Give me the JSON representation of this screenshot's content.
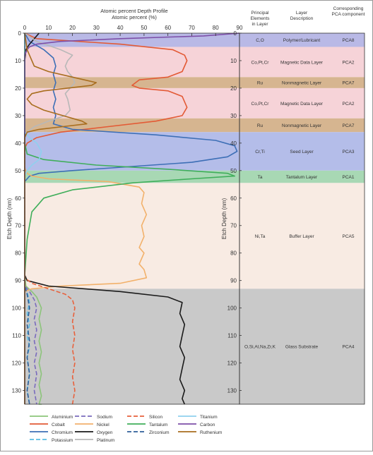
{
  "chart_data": {
    "type": "line",
    "title": "Atomic percent Depth Profile",
    "xlabel": "Atomic percent (%)",
    "ylabel": "Etch Depth (nm)",
    "xlim": [
      0,
      90
    ],
    "ylim": [
      135,
      0
    ],
    "x_ticks": [
      0,
      10,
      20,
      30,
      40,
      50,
      60,
      70,
      80,
      90
    ],
    "y_ticks": [
      0,
      10,
      20,
      30,
      40,
      50,
      60,
      70,
      80,
      90,
      100,
      110,
      120,
      130
    ],
    "grid": false,
    "legend_position": "bottom",
    "table_headers": {
      "elements": "Principal Elements in Layer",
      "description": "Layer Description",
      "component": "Corresponding PCA component"
    },
    "layers": [
      {
        "from": 0,
        "to": 5,
        "color": "#b9b9e6",
        "elements": "C,O",
        "description": "Polymer/Lubricant",
        "component": "PCA8"
      },
      {
        "from": 5,
        "to": 16,
        "color": "#f6d3d8",
        "elements": "Co,Pt,Cr",
        "description": "Magnetic Data Layer",
        "component": "PCA2"
      },
      {
        "from": 16,
        "to": 20,
        "color": "#d6b590",
        "elements": "Ru",
        "description": "Nonmagnetic Layer",
        "component": "PCA7"
      },
      {
        "from": 20,
        "to": 31,
        "color": "#f6d3d8",
        "elements": "Co,Pt,Cr",
        "description": "Magnetic Data Layer",
        "component": "PCA2"
      },
      {
        "from": 31,
        "to": 36,
        "color": "#d6b590",
        "elements": "Ru",
        "description": "Nonmagnetic Layer",
        "component": "PCA7"
      },
      {
        "from": 36,
        "to": 50,
        "color": "#b4bde9",
        "elements": "Cr,Ti",
        "description": "Seed Layer",
        "component": "PCA3"
      },
      {
        "from": 50,
        "to": 54.5,
        "color": "#a8d8b4",
        "elements": "Ta",
        "description": "Tantalum Layer",
        "component": "PCA1"
      },
      {
        "from": 54.5,
        "to": 93,
        "color": "#f8ebe3",
        "elements": "Ni,Ta",
        "description": "Buffer Layer",
        "component": "PCA5"
      },
      {
        "from": 93,
        "to": 135,
        "color": "#c9c9c9",
        "elements": "O,Si,Al,Na,Zr,K",
        "description": "Glass Substrate",
        "component": "PCA4"
      }
    ],
    "series": [
      {
        "name": "Aluminium",
        "color": "#8cc47a",
        "dash": "solid",
        "x": [
          0,
          0,
          0,
          0.5,
          3,
          5,
          7,
          6,
          7,
          6,
          7,
          6,
          7,
          6,
          7,
          6,
          7,
          6,
          7,
          6,
          6
        ],
        "y": [
          0,
          50,
          88,
          92,
          94,
          96,
          100,
          104,
          108,
          112,
          116,
          120,
          124,
          128,
          132,
          135,
          135,
          135,
          135,
          135,
          135
        ]
      },
      {
        "name": "Cobalt",
        "color": "#e35a35",
        "dash": "solid",
        "x": [
          0,
          5,
          40,
          62,
          67,
          68,
          66,
          60,
          48,
          45,
          48,
          60,
          66,
          68,
          66,
          55,
          35,
          15,
          5,
          1,
          0,
          0
        ],
        "y": [
          0,
          2,
          4,
          6,
          8,
          10,
          14,
          16,
          17,
          19,
          20,
          21,
          23,
          27,
          30,
          32,
          34,
          36,
          38,
          40,
          42,
          135
        ]
      },
      {
        "name": "Chromium",
        "color": "#3d6fb6",
        "dash": "solid",
        "x": [
          0,
          2,
          8,
          12,
          13,
          12,
          13,
          12,
          13,
          12,
          13,
          12,
          20,
          55,
          80,
          88,
          89,
          85,
          70,
          45,
          20,
          6,
          2,
          0,
          0
        ],
        "y": [
          0,
          3,
          6,
          9,
          12,
          15,
          18,
          21,
          24,
          27,
          30,
          33,
          35,
          37,
          39,
          41,
          43,
          45,
          47,
          48.5,
          50,
          51,
          52,
          54,
          135
        ]
      },
      {
        "name": "Potassium",
        "color": "#5bbde3",
        "dash": "dash",
        "x": [
          0,
          0,
          1,
          2,
          1,
          2,
          1,
          2,
          1,
          2,
          1,
          2
        ],
        "y": [
          0,
          92,
          94,
          98,
          102,
          106,
          110,
          114,
          118,
          124,
          130,
          135
        ]
      },
      {
        "name": "Sodium",
        "color": "#7a6bbd",
        "dash": "dash",
        "x": [
          0,
          0,
          2,
          4,
          5,
          4,
          5,
          4,
          5,
          4,
          5,
          4,
          5
        ],
        "y": [
          0,
          92,
          94,
          97,
          100,
          104,
          108,
          112,
          116,
          120,
          124,
          130,
          135
        ]
      },
      {
        "name": "Nickel",
        "color": "#f2b16b",
        "dash": "solid",
        "x": [
          0,
          0,
          1,
          3,
          10,
          35,
          48,
          50,
          49,
          51,
          49,
          50,
          48,
          50,
          49,
          48,
          50,
          51,
          40,
          15,
          3,
          0,
          0
        ],
        "y": [
          0,
          49,
          51,
          52,
          53,
          54,
          56,
          58,
          62,
          66,
          70,
          74,
          78,
          80,
          82,
          84,
          86,
          89,
          91,
          92,
          93,
          94,
          135
        ]
      },
      {
        "name": "Oxygen",
        "color": "#1a1a1a",
        "dash": "solid",
        "x": [
          6,
          4,
          2,
          0.5,
          0,
          0,
          1,
          10,
          40,
          60,
          66,
          65,
          67,
          66,
          65,
          67,
          66,
          65,
          67,
          66,
          67
        ],
        "y": [
          0,
          2,
          4,
          6,
          10,
          88,
          90,
          92,
          94,
          96,
          98,
          102,
          106,
          110,
          114,
          118,
          122,
          126,
          130,
          133,
          135
        ]
      },
      {
        "name": "Platinum",
        "color": "#b8b8b8",
        "dash": "solid",
        "x": [
          0,
          5,
          15,
          20,
          18,
          17,
          18,
          20,
          21,
          19,
          17,
          18,
          19,
          17,
          10,
          4,
          1,
          0,
          0
        ],
        "y": [
          0,
          3,
          6,
          8,
          10,
          12,
          14,
          16,
          18,
          20,
          22,
          24,
          28,
          30,
          32,
          34,
          36,
          38,
          135
        ]
      },
      {
        "name": "Silicon",
        "color": "#e8613c",
        "dash": "dash",
        "x": [
          0,
          0,
          3,
          10,
          17,
          20,
          21,
          20,
          21,
          20,
          21,
          20,
          21,
          20
        ],
        "y": [
          0,
          89,
          91,
          93,
          95,
          97,
          100,
          105,
          110,
          115,
          120,
          125,
          130,
          135
        ]
      },
      {
        "name": "Tantalum",
        "color": "#3fae5a",
        "dash": "solid",
        "x": [
          0,
          0,
          1,
          8,
          30,
          60,
          85,
          88,
          70,
          45,
          20,
          8,
          3,
          1,
          0,
          0
        ],
        "y": [
          0,
          40,
          44,
          46,
          48,
          49.5,
          51,
          52,
          53,
          54.5,
          57,
          60,
          65,
          75,
          88,
          135
        ]
      },
      {
        "name": "Zirconium",
        "color": "#2f5e99",
        "dash": "dash",
        "x": [
          0,
          0,
          1,
          2,
          1,
          2,
          1,
          2,
          1,
          2
        ],
        "y": [
          0,
          92,
          95,
          100,
          106,
          112,
          118,
          124,
          130,
          135
        ]
      },
      {
        "name": "Titanium",
        "color": "#8fd1ee",
        "dash": "solid",
        "x": [
          0,
          0,
          2,
          5,
          7,
          6,
          3,
          1,
          0,
          0
        ],
        "y": [
          0,
          36,
          38,
          40,
          43,
          46,
          48,
          50,
          52,
          135
        ]
      },
      {
        "name": "Carbon",
        "color": "#7d4fa8",
        "dash": "solid",
        "x": [
          90,
          75,
          40,
          15,
          5,
          2,
          1,
          0,
          0
        ],
        "y": [
          0,
          1,
          2,
          3,
          4,
          5,
          6,
          8,
          135
        ]
      },
      {
        "name": "Ruthenium",
        "color": "#a86d1e",
        "dash": "solid",
        "x": [
          0,
          1,
          4,
          10,
          20,
          30,
          28,
          18,
          8,
          3,
          1,
          3,
          8,
          16,
          24,
          26,
          16,
          6,
          1,
          0,
          0
        ],
        "y": [
          0,
          6,
          12,
          14,
          16,
          18,
          19,
          20,
          21,
          22,
          24,
          26,
          28,
          30,
          32,
          33,
          34,
          35,
          36,
          38,
          135
        ]
      }
    ]
  }
}
